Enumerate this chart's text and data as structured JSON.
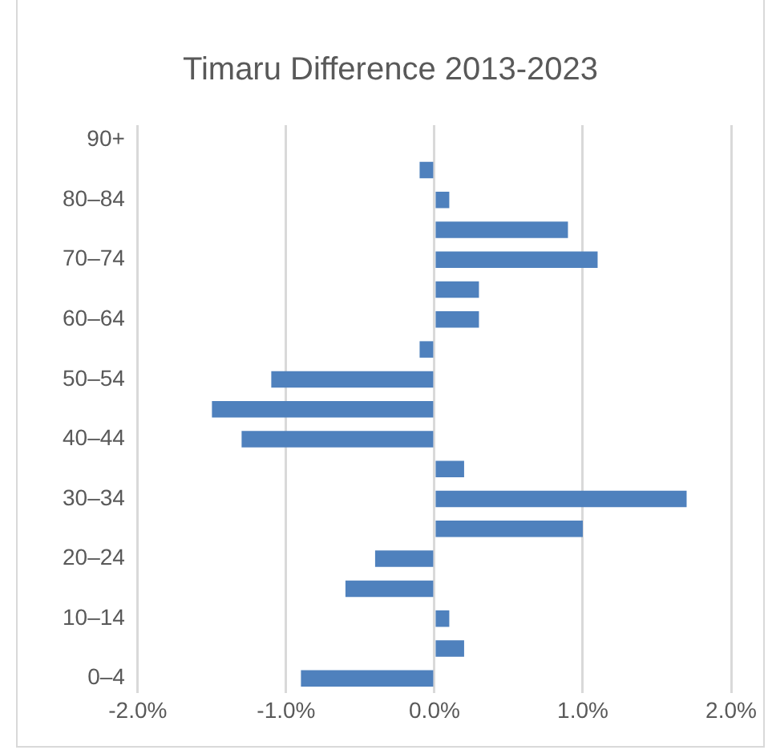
{
  "chart_data": {
    "type": "bar",
    "orientation": "horizontal",
    "title": "Timaru Difference 2013-2023",
    "categories": [
      "90+",
      null,
      "80–84",
      null,
      "70–74",
      null,
      "60–64",
      null,
      "50–54",
      null,
      "40–44",
      null,
      "30–34",
      null,
      "20–24",
      null,
      "10–14",
      null,
      "0–4"
    ],
    "values": [
      0,
      -0.1,
      0.1,
      0.9,
      1.1,
      0.3,
      0.3,
      -0.1,
      -1.1,
      -1.5,
      -1.3,
      0.2,
      1.7,
      1.0,
      -0.4,
      -0.6,
      0.1,
      0.2,
      -0.9
    ],
    "color": "#4f81bd",
    "xlim": [
      -2,
      2
    ],
    "xticks": [
      {
        "value": -2,
        "label": "-2.0%"
      },
      {
        "value": -1,
        "label": "-1.0%"
      },
      {
        "value": 0,
        "label": "0.0%"
      },
      {
        "value": 1,
        "label": "1.0%"
      },
      {
        "value": 2,
        "label": "2.0%"
      }
    ],
    "grid": "x",
    "legend": false
  }
}
